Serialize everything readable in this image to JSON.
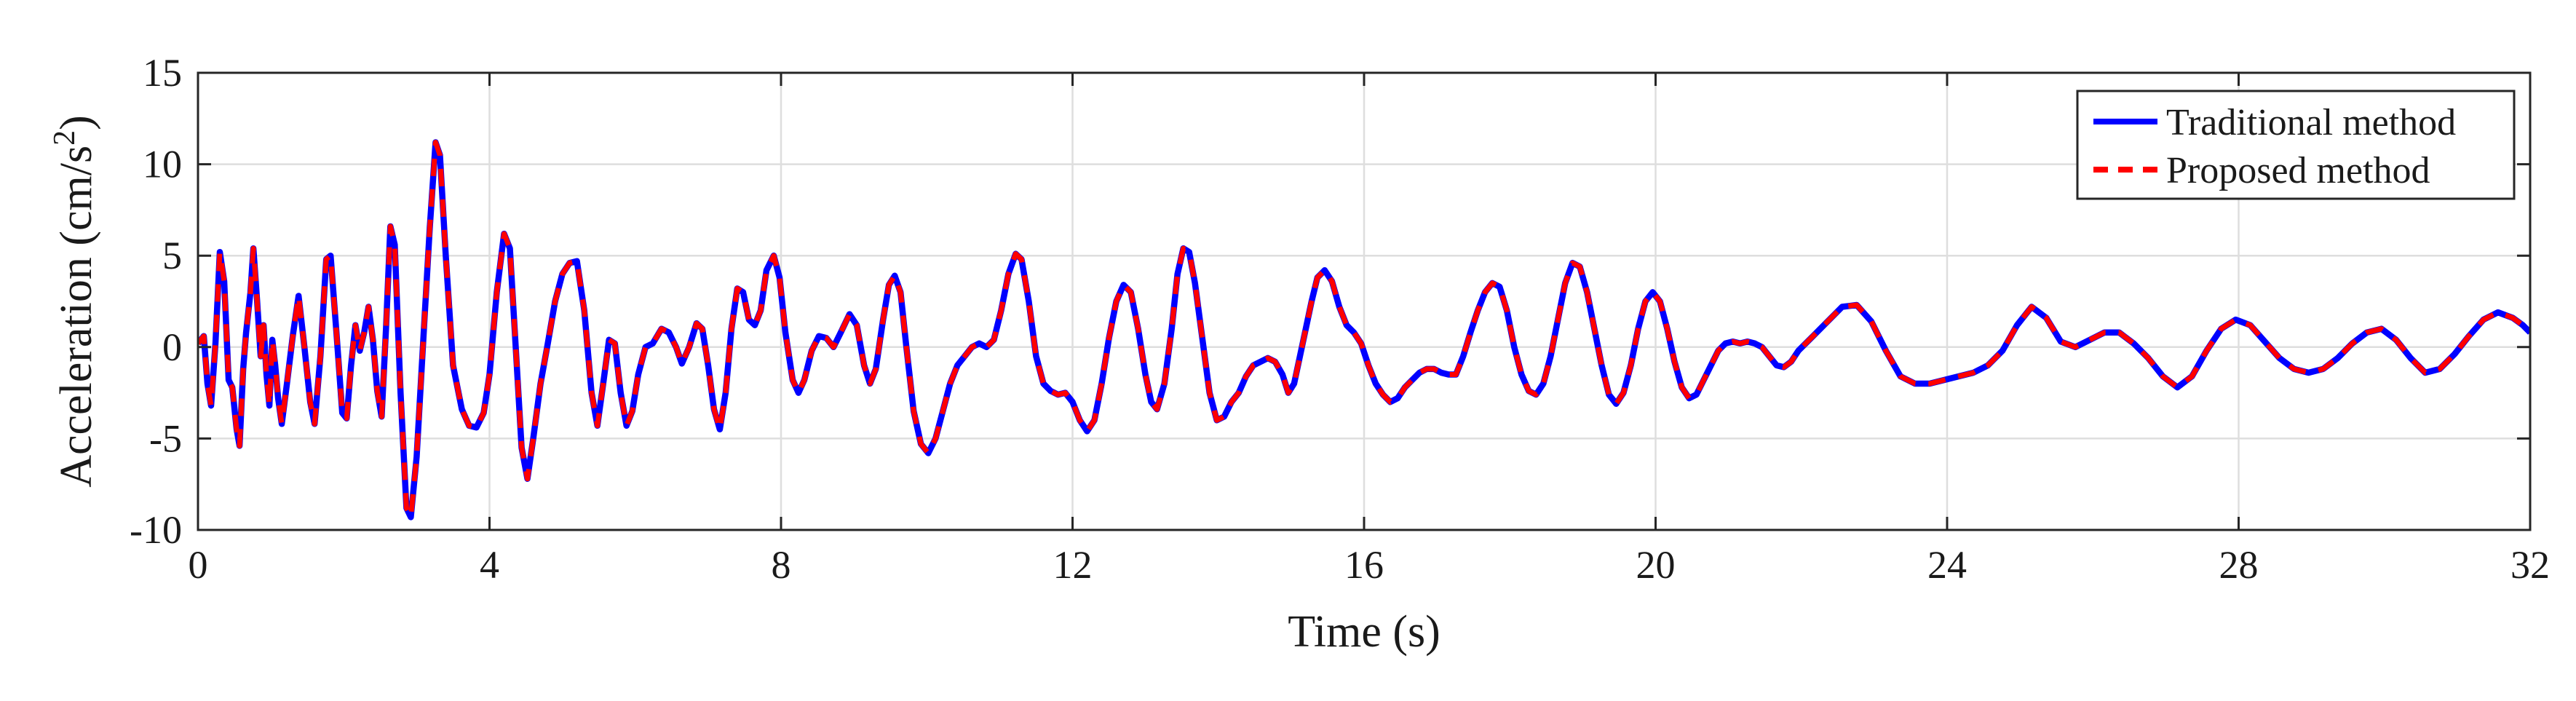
{
  "chart_data": {
    "type": "line",
    "title": "",
    "xlabel": "Time (s)",
    "ylabel": "Acceleration (cm/s",
    "ylabel_superscript": "2",
    "ylabel_close": ")",
    "xlim": [
      0,
      32
    ],
    "ylim": [
      -10,
      15
    ],
    "xticks": [
      0,
      4,
      8,
      12,
      16,
      20,
      24,
      28,
      32
    ],
    "yticks": [
      -10,
      -5,
      0,
      5,
      10,
      15
    ],
    "grid": true,
    "legend_position": "top-right",
    "series": [
      {
        "name": "Traditional method",
        "color": "#0000ff",
        "style": "solid",
        "points": [
          [
            0.0,
            0.2
          ],
          [
            0.08,
            0.6
          ],
          [
            0.13,
            -2.0
          ],
          [
            0.18,
            -3.2
          ],
          [
            0.24,
            0.2
          ],
          [
            0.3,
            5.2
          ],
          [
            0.36,
            3.6
          ],
          [
            0.42,
            -1.8
          ],
          [
            0.47,
            -2.2
          ],
          [
            0.53,
            -4.5
          ],
          [
            0.57,
            -5.4
          ],
          [
            0.62,
            -1.2
          ],
          [
            0.66,
            0.8
          ],
          [
            0.72,
            3.0
          ],
          [
            0.76,
            5.4
          ],
          [
            0.81,
            2.6
          ],
          [
            0.86,
            -0.5
          ],
          [
            0.9,
            1.2
          ],
          [
            0.94,
            -1.5
          ],
          [
            0.98,
            -3.2
          ],
          [
            1.02,
            0.4
          ],
          [
            1.06,
            -1.0
          ],
          [
            1.1,
            -2.8
          ],
          [
            1.15,
            -4.2
          ],
          [
            1.22,
            -2.0
          ],
          [
            1.3,
            0.6
          ],
          [
            1.38,
            2.8
          ],
          [
            1.46,
            0.0
          ],
          [
            1.54,
            -3.0
          ],
          [
            1.6,
            -4.2
          ],
          [
            1.68,
            -0.5
          ],
          [
            1.76,
            4.8
          ],
          [
            1.82,
            5.0
          ],
          [
            1.9,
            0.8
          ],
          [
            1.98,
            -3.6
          ],
          [
            2.04,
            -3.9
          ],
          [
            2.1,
            -1.0
          ],
          [
            2.16,
            1.2
          ],
          [
            2.22,
            -0.2
          ],
          [
            2.28,
            0.8
          ],
          [
            2.34,
            2.2
          ],
          [
            2.4,
            0.4
          ],
          [
            2.46,
            -2.4
          ],
          [
            2.52,
            -3.8
          ],
          [
            2.58,
            1.0
          ],
          [
            2.64,
            6.6
          ],
          [
            2.7,
            5.6
          ],
          [
            2.78,
            -2.5
          ],
          [
            2.86,
            -8.8
          ],
          [
            2.92,
            -9.3
          ],
          [
            3.0,
            -6.0
          ],
          [
            3.1,
            1.0
          ],
          [
            3.18,
            6.5
          ],
          [
            3.26,
            11.2
          ],
          [
            3.32,
            10.5
          ],
          [
            3.4,
            5.0
          ],
          [
            3.5,
            -1.0
          ],
          [
            3.62,
            -3.4
          ],
          [
            3.72,
            -4.3
          ],
          [
            3.82,
            -4.4
          ],
          [
            3.92,
            -3.6
          ],
          [
            4.0,
            -1.5
          ],
          [
            4.1,
            3.0
          ],
          [
            4.2,
            6.2
          ],
          [
            4.28,
            5.4
          ],
          [
            4.36,
            0.0
          ],
          [
            4.44,
            -5.5
          ],
          [
            4.52,
            -7.2
          ],
          [
            4.6,
            -5.0
          ],
          [
            4.7,
            -2.0
          ],
          [
            4.8,
            0.2
          ],
          [
            4.9,
            2.5
          ],
          [
            5.0,
            4.0
          ],
          [
            5.1,
            4.6
          ],
          [
            5.2,
            4.7
          ],
          [
            5.3,
            2.0
          ],
          [
            5.4,
            -2.5
          ],
          [
            5.48,
            -4.3
          ],
          [
            5.56,
            -2.0
          ],
          [
            5.64,
            0.4
          ],
          [
            5.72,
            0.2
          ],
          [
            5.8,
            -2.5
          ],
          [
            5.88,
            -4.3
          ],
          [
            5.96,
            -3.5
          ],
          [
            6.04,
            -1.5
          ],
          [
            6.14,
            0.0
          ],
          [
            6.24,
            0.2
          ],
          [
            6.36,
            1.0
          ],
          [
            6.46,
            0.8
          ],
          [
            6.56,
            0.0
          ],
          [
            6.64,
            -0.9
          ],
          [
            6.74,
            0.0
          ],
          [
            6.84,
            1.3
          ],
          [
            6.92,
            1.0
          ],
          [
            7.0,
            -1.0
          ],
          [
            7.08,
            -3.4
          ],
          [
            7.16,
            -4.5
          ],
          [
            7.24,
            -2.5
          ],
          [
            7.32,
            1.0
          ],
          [
            7.4,
            3.2
          ],
          [
            7.48,
            3.0
          ],
          [
            7.56,
            1.5
          ],
          [
            7.64,
            1.2
          ],
          [
            7.72,
            2.0
          ],
          [
            7.8,
            4.2
          ],
          [
            7.9,
            5.0
          ],
          [
            7.98,
            3.8
          ],
          [
            8.06,
            0.8
          ],
          [
            8.16,
            -1.8
          ],
          [
            8.24,
            -2.5
          ],
          [
            8.32,
            -1.8
          ],
          [
            8.42,
            -0.2
          ],
          [
            8.52,
            0.6
          ],
          [
            8.62,
            0.5
          ],
          [
            8.72,
            0.0
          ],
          [
            8.82,
            0.8
          ],
          [
            8.94,
            1.8
          ],
          [
            9.04,
            1.2
          ],
          [
            9.14,
            -1.0
          ],
          [
            9.22,
            -2.0
          ],
          [
            9.3,
            -1.2
          ],
          [
            9.4,
            1.5
          ],
          [
            9.48,
            3.4
          ],
          [
            9.56,
            3.9
          ],
          [
            9.64,
            3.0
          ],
          [
            9.72,
            0.0
          ],
          [
            9.82,
            -3.5
          ],
          [
            9.92,
            -5.3
          ],
          [
            10.02,
            -5.8
          ],
          [
            10.12,
            -5.0
          ],
          [
            10.22,
            -3.5
          ],
          [
            10.32,
            -2.0
          ],
          [
            10.42,
            -1.0
          ],
          [
            10.52,
            -0.5
          ],
          [
            10.62,
            0.0
          ],
          [
            10.72,
            0.2
          ],
          [
            10.82,
            0.0
          ],
          [
            10.92,
            0.4
          ],
          [
            11.02,
            2.0
          ],
          [
            11.12,
            4.0
          ],
          [
            11.22,
            5.1
          ],
          [
            11.3,
            4.8
          ],
          [
            11.4,
            2.5
          ],
          [
            11.5,
            -0.5
          ],
          [
            11.6,
            -2.0
          ],
          [
            11.7,
            -2.4
          ],
          [
            11.8,
            -2.6
          ],
          [
            11.9,
            -2.5
          ],
          [
            12.0,
            -3.0
          ],
          [
            12.1,
            -4.0
          ],
          [
            12.2,
            -4.6
          ],
          [
            12.3,
            -4.0
          ],
          [
            12.4,
            -2.0
          ],
          [
            12.5,
            0.5
          ],
          [
            12.6,
            2.5
          ],
          [
            12.7,
            3.4
          ],
          [
            12.8,
            3.0
          ],
          [
            12.9,
            1.0
          ],
          [
            13.0,
            -1.5
          ],
          [
            13.08,
            -3.0
          ],
          [
            13.16,
            -3.4
          ],
          [
            13.26,
            -2.0
          ],
          [
            13.36,
            1.0
          ],
          [
            13.44,
            4.0
          ],
          [
            13.52,
            5.4
          ],
          [
            13.6,
            5.2
          ],
          [
            13.68,
            3.5
          ],
          [
            13.78,
            0.5
          ],
          [
            13.88,
            -2.5
          ],
          [
            13.98,
            -4.0
          ],
          [
            14.08,
            -3.8
          ],
          [
            14.18,
            -3.0
          ],
          [
            14.28,
            -2.5
          ],
          [
            14.38,
            -1.6
          ],
          [
            14.48,
            -1.0
          ],
          [
            14.58,
            -0.8
          ],
          [
            14.68,
            -0.6
          ],
          [
            14.78,
            -0.8
          ],
          [
            14.88,
            -1.5
          ],
          [
            14.96,
            -2.5
          ],
          [
            15.04,
            -2.0
          ],
          [
            15.12,
            -0.5
          ],
          [
            15.2,
            1.0
          ],
          [
            15.28,
            2.5
          ],
          [
            15.36,
            3.8
          ],
          [
            15.46,
            4.2
          ],
          [
            15.56,
            3.6
          ],
          [
            15.66,
            2.2
          ],
          [
            15.76,
            1.2
          ],
          [
            15.86,
            0.8
          ],
          [
            15.96,
            0.2
          ],
          [
            16.06,
            -1.0
          ],
          [
            16.16,
            -2.0
          ],
          [
            16.26,
            -2.6
          ],
          [
            16.36,
            -3.0
          ],
          [
            16.46,
            -2.8
          ],
          [
            16.56,
            -2.2
          ],
          [
            16.66,
            -1.8
          ],
          [
            16.76,
            -1.4
          ],
          [
            16.86,
            -1.2
          ],
          [
            16.96,
            -1.2
          ],
          [
            17.06,
            -1.4
          ],
          [
            17.16,
            -1.5
          ],
          [
            17.26,
            -1.5
          ],
          [
            17.36,
            -0.5
          ],
          [
            17.46,
            0.8
          ],
          [
            17.56,
            2.0
          ],
          [
            17.66,
            3.0
          ],
          [
            17.76,
            3.5
          ],
          [
            17.86,
            3.3
          ],
          [
            17.96,
            2.0
          ],
          [
            18.06,
            0.0
          ],
          [
            18.16,
            -1.5
          ],
          [
            18.26,
            -2.4
          ],
          [
            18.36,
            -2.6
          ],
          [
            18.46,
            -2.0
          ],
          [
            18.56,
            -0.5
          ],
          [
            18.66,
            1.5
          ],
          [
            18.76,
            3.5
          ],
          [
            18.86,
            4.6
          ],
          [
            18.96,
            4.4
          ],
          [
            19.06,
            3.0
          ],
          [
            19.16,
            1.0
          ],
          [
            19.26,
            -1.0
          ],
          [
            19.36,
            -2.6
          ],
          [
            19.46,
            -3.1
          ],
          [
            19.56,
            -2.5
          ],
          [
            19.66,
            -1.0
          ],
          [
            19.76,
            1.0
          ],
          [
            19.86,
            2.5
          ],
          [
            19.96,
            3.0
          ],
          [
            20.06,
            2.5
          ],
          [
            20.16,
            1.0
          ],
          [
            20.26,
            -0.8
          ],
          [
            20.36,
            -2.2
          ],
          [
            20.46,
            -2.8
          ],
          [
            20.56,
            -2.6
          ],
          [
            20.66,
            -1.8
          ],
          [
            20.76,
            -1.0
          ],
          [
            20.86,
            -0.2
          ],
          [
            20.96,
            0.2
          ],
          [
            21.06,
            0.3
          ],
          [
            21.16,
            0.2
          ],
          [
            21.26,
            0.3
          ],
          [
            21.36,
            0.2
          ],
          [
            21.46,
            0.0
          ],
          [
            21.56,
            -0.5
          ],
          [
            21.66,
            -1.0
          ],
          [
            21.76,
            -1.1
          ],
          [
            21.86,
            -0.8
          ],
          [
            21.96,
            -0.2
          ],
          [
            22.16,
            0.6
          ],
          [
            22.36,
            1.4
          ],
          [
            22.56,
            2.2
          ],
          [
            22.76,
            2.3
          ],
          [
            22.96,
            1.4
          ],
          [
            23.16,
            -0.2
          ],
          [
            23.36,
            -1.6
          ],
          [
            23.56,
            -2.0
          ],
          [
            23.76,
            -2.0
          ],
          [
            23.96,
            -1.8
          ],
          [
            24.16,
            -1.6
          ],
          [
            24.36,
            -1.4
          ],
          [
            24.56,
            -1.0
          ],
          [
            24.76,
            -0.2
          ],
          [
            24.96,
            1.2
          ],
          [
            25.16,
            2.2
          ],
          [
            25.36,
            1.6
          ],
          [
            25.56,
            0.3
          ],
          [
            25.76,
            0.0
          ],
          [
            25.96,
            0.4
          ],
          [
            26.16,
            0.8
          ],
          [
            26.36,
            0.8
          ],
          [
            26.56,
            0.2
          ],
          [
            26.76,
            -0.6
          ],
          [
            26.96,
            -1.6
          ],
          [
            27.16,
            -2.2
          ],
          [
            27.36,
            -1.6
          ],
          [
            27.56,
            -0.2
          ],
          [
            27.76,
            1.0
          ],
          [
            27.96,
            1.5
          ],
          [
            28.16,
            1.2
          ],
          [
            28.36,
            0.3
          ],
          [
            28.56,
            -0.6
          ],
          [
            28.76,
            -1.2
          ],
          [
            28.96,
            -1.4
          ],
          [
            29.16,
            -1.2
          ],
          [
            29.36,
            -0.6
          ],
          [
            29.56,
            0.2
          ],
          [
            29.76,
            0.8
          ],
          [
            29.96,
            1.0
          ],
          [
            30.16,
            0.4
          ],
          [
            30.36,
            -0.6
          ],
          [
            30.56,
            -1.4
          ],
          [
            30.76,
            -1.2
          ],
          [
            30.96,
            -0.4
          ],
          [
            31.16,
            0.6
          ],
          [
            31.36,
            1.5
          ],
          [
            31.56,
            1.9
          ],
          [
            31.76,
            1.6
          ],
          [
            31.9,
            1.2
          ],
          [
            32.0,
            0.8
          ]
        ]
      },
      {
        "name": "Proposed method",
        "color": "#ff0000",
        "style": "dashed",
        "points": []
      }
    ]
  }
}
